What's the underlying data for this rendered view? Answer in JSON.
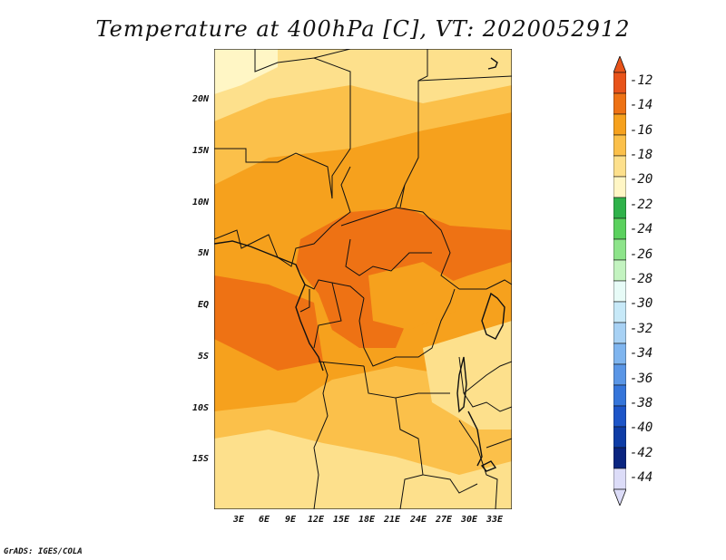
{
  "title": "Temperature at 400hPa [C], VT: 2020052912",
  "footer": "GrADS: IGES/COLA",
  "axes": {
    "y_ticks": [
      "20N",
      "15N",
      "10N",
      "5N",
      "EQ",
      "5S",
      "10S",
      "15S"
    ],
    "x_ticks": [
      "3E",
      "6E",
      "9E",
      "12E",
      "15E",
      "18E",
      "21E",
      "24E",
      "27E",
      "30E",
      "33E"
    ]
  },
  "map": {
    "region": "Central Africa",
    "lon_range": [
      0,
      35
    ],
    "lat_range": [
      -20,
      25
    ],
    "dominant_levels": [
      "-14",
      "-16",
      "-18",
      "-20"
    ]
  },
  "colorbar": {
    "labels": [
      "-12",
      "-14",
      "-16",
      "-18",
      "-20",
      "-22",
      "-24",
      "-26",
      "-28",
      "-30",
      "-32",
      "-34",
      "-36",
      "-38",
      "-40",
      "-42",
      "-44"
    ],
    "colors": [
      "#e8531a",
      "#ee7214",
      "#f6a11d",
      "#fbc04a",
      "#fde08c",
      "#fff6c5",
      "#2fb24a",
      "#5bd15e",
      "#8de48a",
      "#c3f3c0",
      "#e7fbf7",
      "#c7e9f8",
      "#a7d1f4",
      "#7fb5ef",
      "#5a96e6",
      "#3575da",
      "#1d55c8",
      "#0e3ca6",
      "#0a2580",
      "#dcdcf8"
    ],
    "top_arrow_color": "#e8531a",
    "bottom_arrow_color": "#dcdcf8"
  }
}
